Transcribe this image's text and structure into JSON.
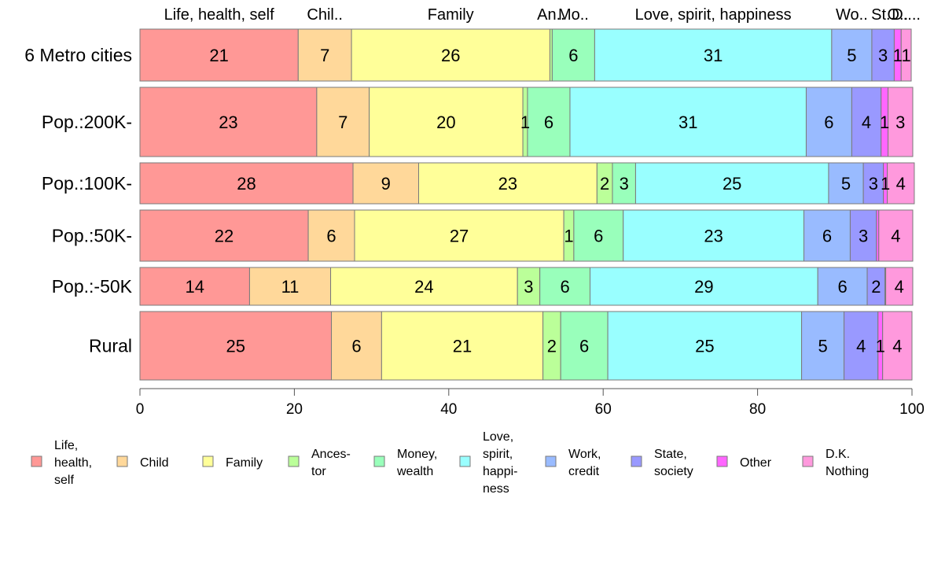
{
  "chart_data": {
    "type": "bar",
    "orientation": "horizontal",
    "stacked": true,
    "categories": [
      "6 Metro cities",
      "Pop.:200K-",
      "Pop.:100K-",
      "Pop.:50K-",
      "Pop.:-50K",
      "Rural"
    ],
    "series": [
      {
        "name": "Life, health, self",
        "color": "#FF9896",
        "values": [
          20.5,
          22.9,
          27.6,
          21.8,
          14.2,
          24.8
        ]
      },
      {
        "name": "Child",
        "color": "#FFD89A",
        "values": [
          6.9,
          6.8,
          8.5,
          6.0,
          10.5,
          6.5
        ]
      },
      {
        "name": "Family",
        "color": "#FFFF99",
        "values": [
          25.7,
          19.9,
          23.1,
          27.1,
          24.2,
          20.9
        ]
      },
      {
        "name": "Ancestor",
        "color": "#BBFF99",
        "values": [
          0.3,
          0.6,
          2.0,
          1.3,
          2.9,
          2.3
        ]
      },
      {
        "name": "Money, wealth",
        "color": "#99FFBB",
        "values": [
          5.5,
          5.5,
          3.0,
          6.4,
          6.5,
          6.1
        ]
      },
      {
        "name": "Love, spirit, happiness",
        "color": "#99FFFF",
        "values": [
          30.7,
          30.6,
          25.0,
          23.4,
          29.5,
          25.1
        ]
      },
      {
        "name": "Work, credit",
        "color": "#99BBFF",
        "values": [
          5.2,
          5.9,
          4.5,
          6.0,
          6.4,
          5.5
        ]
      },
      {
        "name": "State, society",
        "color": "#9999FF",
        "values": [
          2.9,
          3.8,
          2.6,
          3.4,
          2.3,
          4.4
        ]
      },
      {
        "name": "Other",
        "color": "#FF66FF",
        "values": [
          0.9,
          0.9,
          0.5,
          0.3,
          0.1,
          0.6
        ]
      },
      {
        "name": "D.K. Nothing",
        "color": "#FF99DD",
        "values": [
          1.3,
          3.2,
          3.5,
          4.4,
          3.5,
          3.8
        ]
      }
    ],
    "segment_labels": [
      [
        "21",
        "7",
        "26",
        "",
        "6",
        "31",
        "5",
        "3",
        "1",
        "1"
      ],
      [
        "23",
        "7",
        "20",
        "1",
        "6",
        "31",
        "6",
        "4",
        "1",
        "3"
      ],
      [
        "28",
        "9",
        "23",
        "2",
        "3",
        "25",
        "5",
        "3",
        "1",
        "4"
      ],
      [
        "22",
        "6",
        "27",
        "1",
        "6",
        "23",
        "6",
        "3",
        "",
        "4"
      ],
      [
        "14",
        "11",
        "24",
        "3",
        "6",
        "29",
        "6",
        "2",
        "",
        "4"
      ],
      [
        "25",
        "6",
        "21",
        "2",
        "6",
        "25",
        "5",
        "4",
        "1",
        "4"
      ]
    ],
    "top_labels": [
      "Life, health, self",
      "Chil..",
      "Family",
      "An..",
      "Mo..",
      "Love, spirit, happiness",
      "Wo..",
      "St..",
      "O..",
      "D...."
    ],
    "x_ticks": [
      "0",
      "20",
      "40",
      "60",
      "80",
      "100"
    ],
    "xlim": [
      0,
      100
    ],
    "legend": {
      "placement": "bottom",
      "entries": [
        [
          "Life,",
          "health,",
          "self"
        ],
        [
          "Child"
        ],
        [
          "Family"
        ],
        [
          "Ances-",
          "tor"
        ],
        [
          "Money,",
          "wealth"
        ],
        [
          "Love,",
          "spirit,",
          "happi-",
          "ness"
        ],
        [
          "Work,",
          "credit"
        ],
        [
          "State,",
          "society"
        ],
        [
          "Other"
        ],
        [
          "D.K.",
          "Nothing"
        ]
      ]
    },
    "grid": false
  }
}
